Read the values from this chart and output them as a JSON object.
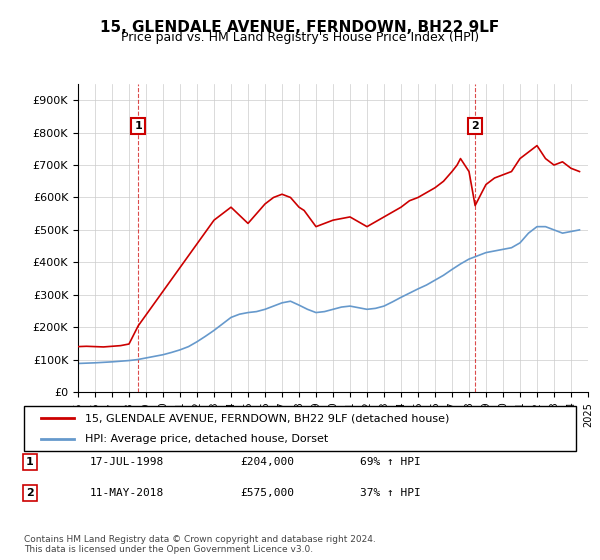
{
  "title": "15, GLENDALE AVENUE, FERNDOWN, BH22 9LF",
  "subtitle": "Price paid vs. HM Land Registry's House Price Index (HPI)",
  "legend_line1": "15, GLENDALE AVENUE, FERNDOWN, BH22 9LF (detached house)",
  "legend_line2": "HPI: Average price, detached house, Dorset",
  "footer": "Contains HM Land Registry data © Crown copyright and database right 2024.\nThis data is licensed under the Open Government Licence v3.0.",
  "sale1_label": "1",
  "sale1_date": "17-JUL-1998",
  "sale1_price": "£204,000",
  "sale1_hpi": "69% ↑ HPI",
  "sale2_label": "2",
  "sale2_date": "11-MAY-2018",
  "sale2_price": "£575,000",
  "sale2_hpi": "37% ↑ HPI",
  "red_color": "#cc0000",
  "blue_color": "#6699cc",
  "ylim": [
    0,
    950000
  ],
  "yticks": [
    0,
    100000,
    200000,
    300000,
    400000,
    500000,
    600000,
    700000,
    800000,
    900000
  ],
  "sale1_x": 1998.54,
  "sale2_x": 2018.36,
  "hpi_years": [
    1995,
    1995.5,
    1996,
    1996.5,
    1997,
    1997.5,
    1998,
    1998.5,
    1999,
    1999.5,
    2000,
    2000.5,
    2001,
    2001.5,
    2002,
    2002.5,
    2003,
    2003.5,
    2004,
    2004.5,
    2005,
    2005.5,
    2006,
    2006.5,
    2007,
    2007.5,
    2008,
    2008.5,
    2009,
    2009.5,
    2010,
    2010.5,
    2011,
    2011.5,
    2012,
    2012.5,
    2013,
    2013.5,
    2014,
    2014.5,
    2015,
    2015.5,
    2016,
    2016.5,
    2017,
    2017.5,
    2018,
    2018.5,
    2019,
    2019.5,
    2020,
    2020.5,
    2021,
    2021.5,
    2022,
    2022.5,
    2023,
    2023.5,
    2024,
    2024.5
  ],
  "hpi_values": [
    88000,
    89000,
    90000,
    91500,
    93000,
    95000,
    97000,
    100000,
    105000,
    110000,
    115000,
    122000,
    130000,
    140000,
    155000,
    172000,
    190000,
    210000,
    230000,
    240000,
    245000,
    248000,
    255000,
    265000,
    275000,
    280000,
    268000,
    255000,
    245000,
    248000,
    255000,
    262000,
    265000,
    260000,
    255000,
    258000,
    265000,
    278000,
    292000,
    305000,
    318000,
    330000,
    345000,
    360000,
    378000,
    395000,
    410000,
    420000,
    430000,
    435000,
    440000,
    445000,
    460000,
    490000,
    510000,
    510000,
    500000,
    490000,
    495000,
    500000
  ],
  "red_years": [
    1995,
    1995.5,
    1996,
    1996.5,
    1997,
    1997.5,
    1998,
    1998.54,
    2003,
    2004,
    2005,
    2006,
    2006.5,
    2007,
    2007.5,
    2008,
    2008.3,
    2009,
    2010,
    2011,
    2012,
    2013,
    2014,
    2014.5,
    2015,
    2015.5,
    2016,
    2016.5,
    2017,
    2017.3,
    2017.5,
    2018.0,
    2018.36,
    2018.8,
    2019,
    2019.5,
    2020,
    2020.5,
    2021,
    2021.5,
    2022,
    2022.5,
    2023,
    2023.5,
    2024,
    2024.5
  ],
  "red_values": [
    140000,
    141000,
    140000,
    139000,
    141000,
    143000,
    148000,
    204000,
    530000,
    570000,
    520000,
    580000,
    600000,
    610000,
    600000,
    570000,
    560000,
    510000,
    530000,
    540000,
    510000,
    540000,
    570000,
    590000,
    600000,
    615000,
    630000,
    650000,
    680000,
    700000,
    720000,
    680000,
    575000,
    620000,
    640000,
    660000,
    670000,
    680000,
    720000,
    740000,
    760000,
    720000,
    700000,
    710000,
    690000,
    680000
  ]
}
